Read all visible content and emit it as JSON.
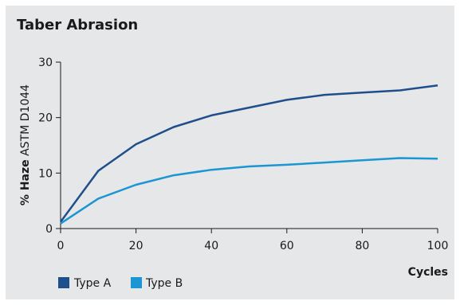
{
  "chart_data": {
    "type": "line",
    "title": "Taber Abrasion",
    "xlabel": "Cycles",
    "ylabel_bold": "% Haze",
    "ylabel_rest": " ASTM D1044",
    "xlim": [
      0,
      100
    ],
    "ylim": [
      0,
      30
    ],
    "xticks": [
      0,
      20,
      40,
      60,
      80,
      100
    ],
    "yticks": [
      0,
      10,
      20,
      30
    ],
    "grid": false,
    "legend_position": "bottom-left",
    "series": [
      {
        "name": "Type A",
        "color": "#1f4e8c",
        "x": [
          0,
          10,
          20,
          30,
          40,
          50,
          60,
          70,
          80,
          90,
          100
        ],
        "y": [
          1.2,
          10.4,
          15.2,
          18.3,
          20.4,
          21.8,
          23.2,
          24.1,
          24.5,
          24.9,
          25.8
        ]
      },
      {
        "name": "Type B",
        "color": "#1b95d3",
        "x": [
          0,
          10,
          20,
          30,
          40,
          50,
          60,
          70,
          80,
          90,
          100
        ],
        "y": [
          0.9,
          5.4,
          7.9,
          9.6,
          10.6,
          11.2,
          11.5,
          11.9,
          12.3,
          12.7,
          12.6
        ]
      }
    ]
  }
}
